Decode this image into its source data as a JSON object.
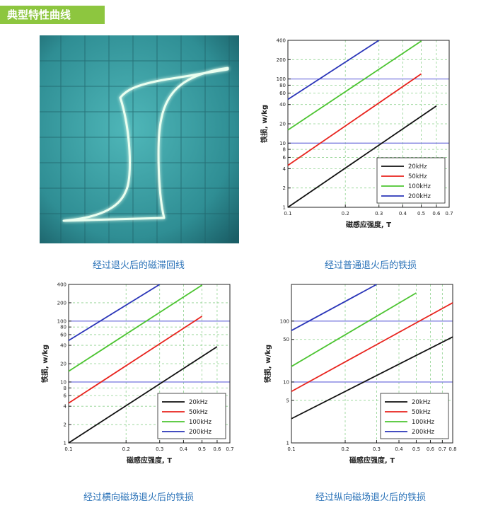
{
  "header": {
    "title": "典型特性曲线"
  },
  "colors": {
    "black": "#111111",
    "red": "#e8231d",
    "green": "#4cc431",
    "blue": "#2a35b8",
    "refline": "#7f7fe0",
    "grid": "#8fd28f",
    "accent": "#8dc63f",
    "caption": "#2a72b8"
  },
  "captions": {
    "hysteresis": "经过退火后的磁滞回线",
    "chart1": "经过普通退火后的铁损",
    "chart2": "经过横向磁场退火后的铁损",
    "chart3": "经过纵向磁场退火后的铁损"
  },
  "chart_data": [
    {
      "type": "line",
      "title": "经过普通退火后的铁损",
      "xlabel": "磁感应强度, T",
      "ylabel": "铁损, w/kg",
      "xscale": "log",
      "yscale": "log",
      "xlim": [
        0.1,
        0.7
      ],
      "ylim": [
        1,
        400
      ],
      "xticks": [
        0.1,
        0.2,
        0.3,
        0.4,
        0.5,
        0.6,
        0.7
      ],
      "xticklabels": [
        "0.1",
        "0.2",
        "0.3",
        "0.4",
        "0.5",
        "0.6",
        "0.7"
      ],
      "yticks": [
        1,
        2,
        4,
        6,
        8,
        10,
        20,
        40,
        60,
        80,
        100,
        200,
        400
      ],
      "yticklabels": [
        "1",
        "2",
        "4",
        "6",
        "8",
        "10",
        "20",
        "40",
        "60",
        "80",
        "100",
        "200",
        "400"
      ],
      "hlines": [
        10,
        100
      ],
      "legend_position": "lower-right",
      "series": [
        {
          "name": "20kHz",
          "color": "black",
          "x": [
            0.1,
            0.6
          ],
          "y": [
            1,
            38
          ]
        },
        {
          "name": "50kHz",
          "color": "red",
          "x": [
            0.1,
            0.5
          ],
          "y": [
            4.5,
            120
          ]
        },
        {
          "name": "100kHz",
          "color": "green",
          "x": [
            0.1,
            0.5
          ],
          "y": [
            16,
            390
          ]
        },
        {
          "name": "200kHz",
          "color": "blue",
          "x": [
            0.1,
            0.3
          ],
          "y": [
            48,
            400
          ]
        }
      ]
    },
    {
      "type": "line",
      "title": "经过横向磁场退火后的铁损",
      "xlabel": "磁感应强度, T",
      "ylabel": "铁损, w/kg",
      "xscale": "log",
      "yscale": "log",
      "xlim": [
        0.1,
        0.7
      ],
      "ylim": [
        1,
        400
      ],
      "xticks": [
        0.1,
        0.2,
        0.3,
        0.4,
        0.5,
        0.6,
        0.7
      ],
      "xticklabels": [
        "0.1",
        "0.2",
        "0.3",
        "0.4",
        "0.5",
        "0.6",
        "0.7"
      ],
      "yticks": [
        1,
        2,
        4,
        6,
        8,
        10,
        20,
        40,
        60,
        80,
        100,
        200,
        400
      ],
      "yticklabels": [
        "1",
        "2",
        "4",
        "6",
        "8",
        "10",
        "20",
        "40",
        "60",
        "80",
        "100",
        "200",
        "400"
      ],
      "hlines": [
        10,
        100
      ],
      "legend_position": "lower-right",
      "series": [
        {
          "name": "20kHz",
          "color": "black",
          "x": [
            0.1,
            0.6
          ],
          "y": [
            1,
            38
          ]
        },
        {
          "name": "50kHz",
          "color": "red",
          "x": [
            0.1,
            0.5
          ],
          "y": [
            4.5,
            120
          ]
        },
        {
          "name": "100kHz",
          "color": "green",
          "x": [
            0.1,
            0.5
          ],
          "y": [
            15,
            390
          ]
        },
        {
          "name": "200kHz",
          "color": "blue",
          "x": [
            0.1,
            0.3
          ],
          "y": [
            48,
            400
          ]
        }
      ]
    },
    {
      "type": "line",
      "title": "经过纵向磁场退火后的铁损",
      "xlabel": "磁感应强度, T",
      "ylabel": "铁损, w/kg",
      "xscale": "log",
      "yscale": "log",
      "xlim": [
        0.1,
        0.8
      ],
      "ylim": [
        1,
        400
      ],
      "xticks": [
        0.1,
        0.2,
        0.3,
        0.4,
        0.5,
        0.6,
        0.7,
        0.8
      ],
      "xticklabels": [
        "0.1",
        "0.2",
        "0.3",
        "0.4",
        "0.5",
        "0.6",
        "0.7",
        "0.8"
      ],
      "yticks": [
        1,
        5,
        10,
        50,
        100
      ],
      "yticklabels": [
        "1",
        "5",
        "10",
        "50",
        "100"
      ],
      "hlines": [
        10,
        100
      ],
      "legend_position": "lower-right",
      "series": [
        {
          "name": "20kHz",
          "color": "black",
          "x": [
            0.1,
            0.8
          ],
          "y": [
            2.5,
            55
          ]
        },
        {
          "name": "50kHz",
          "color": "red",
          "x": [
            0.1,
            0.8
          ],
          "y": [
            7,
            200
          ]
        },
        {
          "name": "100kHz",
          "color": "green",
          "x": [
            0.1,
            0.5
          ],
          "y": [
            18,
            290
          ]
        },
        {
          "name": "200kHz",
          "color": "blue",
          "x": [
            0.1,
            0.3
          ],
          "y": [
            70,
            400
          ]
        }
      ]
    }
  ]
}
